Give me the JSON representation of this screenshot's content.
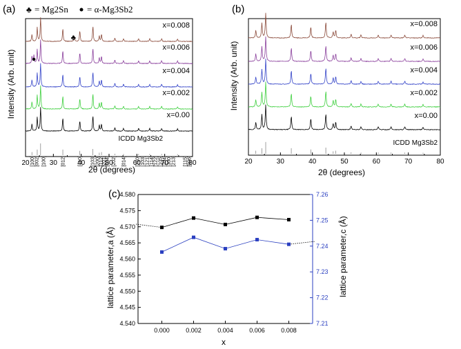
{
  "panels": {
    "a": {
      "label": "(a)",
      "legend": {
        "club_text": "= Mg2Sn",
        "dot_text": "= α-Mg3Sb2"
      },
      "ylabel": "Intensity (Arb. unit)",
      "xlabel": "2θ (degrees)",
      "xlim": [
        20,
        80
      ],
      "xticks": [
        "20",
        "30",
        "40",
        "50",
        "60",
        "70",
        "80"
      ],
      "ref_label": "ICDD Mg3Sb2",
      "hkl": [
        "[100]",
        "[002]",
        "[100]",
        "[012]",
        "[110]",
        "[103]",
        "[200]",
        "[112]",
        "[201]",
        "[004]",
        "[202]",
        "[014]",
        "[210]",
        "[103]",
        "[121]",
        "[114]",
        "[122]",
        "[105]",
        "[204]",
        "[300]",
        "[213]",
        "[115]",
        "[006]"
      ]
    },
    "b": {
      "label": "(b)",
      "ylabel": "Intensity (Arb. unit)",
      "xlabel": "2θ (degrees)",
      "xlim": [
        20,
        80
      ],
      "xticks": [
        "20",
        "30",
        "40",
        "50",
        "60",
        "70",
        "80"
      ],
      "ref_label": "ICDD Mg3Sb2"
    },
    "c": {
      "label": "(c)",
      "xlabel": "x",
      "ylabel_left": "lattice parameter,a (Å)",
      "ylabel_right": "lattice parameter,c (Å)",
      "x_ticks": [
        "0.000",
        "0.002",
        "0.004",
        "0.006",
        "0.008"
      ],
      "left_ticks": [
        "4.540",
        "4.545",
        "4.550",
        "4.555",
        "4.560",
        "4.565",
        "4.570",
        "4.575",
        "4.580"
      ],
      "right_ticks": [
        "7.21",
        "7.22",
        "7.23",
        "7.24",
        "7.25",
        "7.26"
      ]
    }
  },
  "chart_data": [
    {
      "type": "line",
      "title": "",
      "xlabel": "2θ (degrees)",
      "ylabel": "Intensity (Arb. unit)",
      "xlim": [
        20,
        80
      ],
      "series": [
        {
          "name": "x=0.00",
          "color": "#000000",
          "peaks": [
            [
              22.3,
              0.3
            ],
            [
              24.2,
              0.6
            ],
            [
              25.4,
              1.0
            ],
            [
              33.4,
              0.55
            ],
            [
              39.5,
              0.45
            ],
            [
              44.2,
              0.65
            ],
            [
              46.5,
              0.25
            ],
            [
              47.3,
              0.3
            ],
            [
              52.1,
              0.15
            ],
            [
              55.2,
              0.12
            ],
            [
              60.6,
              0.12
            ],
            [
              64.6,
              0.12
            ],
            [
              68.9,
              0.12
            ],
            [
              74.6,
              0.1
            ]
          ]
        },
        {
          "name": "x=0.002",
          "color": "#3ecf3e",
          "peaks": [
            [
              22.3,
              0.3
            ],
            [
              24.2,
              0.6
            ],
            [
              25.4,
              1.0
            ],
            [
              33.4,
              0.55
            ],
            [
              39.5,
              0.45
            ],
            [
              44.2,
              0.65
            ],
            [
              46.5,
              0.25
            ],
            [
              47.3,
              0.3
            ],
            [
              52.1,
              0.15
            ],
            [
              55.2,
              0.12
            ],
            [
              60.6,
              0.12
            ],
            [
              64.6,
              0.12
            ],
            [
              68.9,
              0.12
            ],
            [
              74.6,
              0.1
            ]
          ]
        },
        {
          "name": "x=0.004",
          "color": "#3343c8",
          "peaks": [
            [
              22.3,
              0.3
            ],
            [
              24.2,
              0.6
            ],
            [
              25.4,
              1.0
            ],
            [
              33.4,
              0.55
            ],
            [
              39.5,
              0.45
            ],
            [
              44.2,
              0.65
            ],
            [
              46.5,
              0.25
            ],
            [
              47.3,
              0.3
            ],
            [
              52.1,
              0.15
            ],
            [
              55.2,
              0.12
            ],
            [
              60.6,
              0.12
            ],
            [
              64.6,
              0.12
            ],
            [
              68.9,
              0.12
            ],
            [
              74.6,
              0.1
            ]
          ]
        },
        {
          "name": "x=0.006",
          "color": "#8a3f9c",
          "peaks": [
            [
              22.3,
              0.3
            ],
            [
              23.0,
              0.35
            ],
            [
              24.2,
              0.6
            ],
            [
              25.4,
              1.0
            ],
            [
              33.4,
              0.55
            ],
            [
              39.5,
              0.45
            ],
            [
              44.2,
              0.65
            ],
            [
              46.5,
              0.25
            ],
            [
              47.3,
              0.3
            ],
            [
              52.1,
              0.15
            ],
            [
              55.2,
              0.12
            ],
            [
              60.6,
              0.12
            ],
            [
              64.6,
              0.12
            ],
            [
              68.9,
              0.12
            ],
            [
              74.6,
              0.1
            ]
          ]
        },
        {
          "name": "x=0.008",
          "color": "#8b4a3a",
          "peaks": [
            [
              22.3,
              0.3
            ],
            [
              24.2,
              0.6
            ],
            [
              25.4,
              1.0
            ],
            [
              33.4,
              0.55
            ],
            [
              37.5,
              0.2
            ],
            [
              39.5,
              0.45
            ],
            [
              44.2,
              0.65
            ],
            [
              46.5,
              0.25
            ],
            [
              47.3,
              0.3
            ],
            [
              52.1,
              0.15
            ],
            [
              55.2,
              0.12
            ],
            [
              60.6,
              0.12
            ],
            [
              64.6,
              0.12
            ],
            [
              68.9,
              0.12
            ],
            [
              74.6,
              0.1
            ]
          ]
        }
      ],
      "reference": {
        "name": "ICDD Mg3Sb2",
        "sticks": [
          [
            22.3,
            0.25
          ],
          [
            24.2,
            0.45
          ],
          [
            25.4,
            0.95
          ],
          [
            33.4,
            0.45
          ],
          [
            39.5,
            0.35
          ],
          [
            44.2,
            0.5
          ],
          [
            46.5,
            0.2
          ],
          [
            47.3,
            0.25
          ],
          [
            52.1,
            0.12
          ],
          [
            55.2,
            0.1
          ],
          [
            60.6,
            0.1
          ],
          [
            64.6,
            0.1
          ],
          [
            68.9,
            0.1
          ],
          [
            74.6,
            0.08
          ]
        ]
      }
    },
    {
      "type": "line",
      "title": "",
      "xlabel": "2θ (degrees)",
      "ylabel": "Intensity (Arb. unit)",
      "xlim": [
        20,
        80
      ],
      "series": [
        {
          "name": "x=0.00",
          "color": "#000000",
          "peaks": [
            [
              22.3,
              0.3
            ],
            [
              24.2,
              0.6
            ],
            [
              25.4,
              1.0
            ],
            [
              33.4,
              0.55
            ],
            [
              39.5,
              0.45
            ],
            [
              44.2,
              0.65
            ],
            [
              46.5,
              0.25
            ],
            [
              47.3,
              0.3
            ],
            [
              52.1,
              0.15
            ],
            [
              55.2,
              0.12
            ],
            [
              60.6,
              0.12
            ],
            [
              64.6,
              0.12
            ],
            [
              68.9,
              0.12
            ],
            [
              74.6,
              0.1
            ]
          ]
        },
        {
          "name": "x=0.002",
          "color": "#3ecf3e",
          "peaks": [
            [
              22.3,
              0.3
            ],
            [
              24.2,
              0.6
            ],
            [
              25.4,
              1.0
            ],
            [
              33.4,
              0.55
            ],
            [
              39.5,
              0.45
            ],
            [
              44.2,
              0.65
            ],
            [
              46.5,
              0.25
            ],
            [
              47.3,
              0.3
            ],
            [
              52.1,
              0.15
            ],
            [
              55.2,
              0.12
            ],
            [
              60.6,
              0.12
            ],
            [
              64.6,
              0.12
            ],
            [
              68.9,
              0.12
            ],
            [
              74.6,
              0.1
            ]
          ]
        },
        {
          "name": "x=0.004",
          "color": "#3343c8",
          "peaks": [
            [
              22.3,
              0.3
            ],
            [
              24.2,
              0.6
            ],
            [
              25.4,
              1.0
            ],
            [
              33.4,
              0.55
            ],
            [
              39.5,
              0.45
            ],
            [
              44.2,
              0.65
            ],
            [
              46.5,
              0.25
            ],
            [
              47.3,
              0.3
            ],
            [
              52.1,
              0.15
            ],
            [
              55.2,
              0.12
            ],
            [
              60.6,
              0.12
            ],
            [
              64.6,
              0.12
            ],
            [
              68.9,
              0.12
            ],
            [
              74.6,
              0.1
            ]
          ]
        },
        {
          "name": "x=0.006",
          "color": "#8a3f9c",
          "peaks": [
            [
              22.3,
              0.3
            ],
            [
              24.2,
              0.6
            ],
            [
              25.4,
              1.0
            ],
            [
              33.4,
              0.55
            ],
            [
              39.5,
              0.45
            ],
            [
              44.2,
              0.65
            ],
            [
              46.5,
              0.25
            ],
            [
              47.3,
              0.3
            ],
            [
              52.1,
              0.15
            ],
            [
              55.2,
              0.12
            ],
            [
              60.6,
              0.12
            ],
            [
              64.6,
              0.12
            ],
            [
              68.9,
              0.12
            ],
            [
              74.6,
              0.1
            ]
          ]
        },
        {
          "name": "x=0.008",
          "color": "#8b4a3a",
          "peaks": [
            [
              22.3,
              0.3
            ],
            [
              24.2,
              0.6
            ],
            [
              25.4,
              1.0
            ],
            [
              33.4,
              0.55
            ],
            [
              39.5,
              0.45
            ],
            [
              44.2,
              0.65
            ],
            [
              46.5,
              0.25
            ],
            [
              47.3,
              0.3
            ],
            [
              52.1,
              0.15
            ],
            [
              55.2,
              0.12
            ],
            [
              60.6,
              0.12
            ],
            [
              64.6,
              0.12
            ],
            [
              68.9,
              0.12
            ],
            [
              74.6,
              0.1
            ]
          ]
        }
      ],
      "reference": {
        "name": "ICDD Mg3Sb2",
        "sticks": [
          [
            22.3,
            0.25
          ],
          [
            24.2,
            0.45
          ],
          [
            25.4,
            0.95
          ],
          [
            33.4,
            0.45
          ],
          [
            39.5,
            0.35
          ],
          [
            44.2,
            0.5
          ],
          [
            46.5,
            0.2
          ],
          [
            47.3,
            0.25
          ],
          [
            52.1,
            0.12
          ],
          [
            55.2,
            0.1
          ],
          [
            60.6,
            0.1
          ],
          [
            64.6,
            0.1
          ],
          [
            68.9,
            0.1
          ],
          [
            74.6,
            0.08
          ]
        ]
      }
    },
    {
      "type": "line",
      "title": "",
      "xlabel": "x",
      "ylabel": "lattice parameter,a (Å)",
      "y2label": "lattice parameter,c (Å)",
      "xlim": [
        -0.0015,
        0.0095
      ],
      "ylim": [
        4.54,
        4.58
      ],
      "y2lim": [
        7.21,
        7.26
      ],
      "x": [
        0.0,
        0.002,
        0.004,
        0.006,
        0.008
      ],
      "series": [
        {
          "name": "a",
          "axis": "left",
          "color": "#000000",
          "values": [
            4.5698,
            4.5727,
            4.5707,
            4.5729,
            4.5722
          ]
        },
        {
          "name": "c",
          "axis": "right",
          "color": "#2a3fc0",
          "values": [
            7.2377,
            7.2434,
            7.239,
            7.2425,
            7.2407
          ]
        }
      ]
    }
  ]
}
